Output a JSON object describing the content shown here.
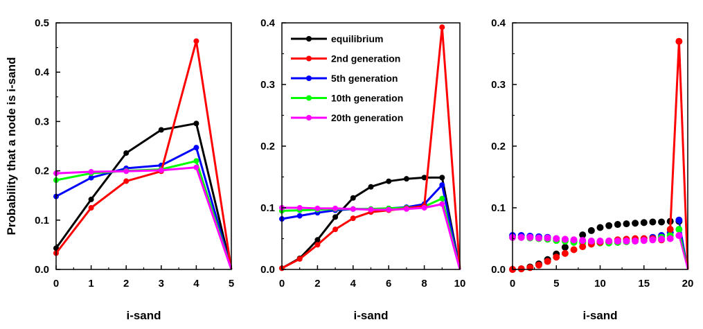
{
  "figure": {
    "ylabel": "Probability that a node is i-sand"
  },
  "colors": {
    "equilibrium": "#000000",
    "2nd": "#ff0000",
    "5th": "#0000ff",
    "10th": "#00ff00",
    "20th": "#ff00ff"
  },
  "chart_data": [
    {
      "type": "line",
      "xlabel": "i-sand",
      "xlim": [
        0,
        5
      ],
      "ylim": [
        0,
        0.5
      ],
      "xticks": [
        0,
        1,
        2,
        3,
        4,
        5
      ],
      "yticks": [
        0.0,
        0.1,
        0.2,
        0.3,
        0.4,
        0.5
      ],
      "series": [
        {
          "key": "equilibrium",
          "x": [
            0,
            1,
            2,
            3,
            4,
            5
          ],
          "y": [
            0.043,
            0.142,
            0.236,
            0.283,
            0.296,
            0.0
          ]
        },
        {
          "key": "5th",
          "x": [
            0,
            1,
            2,
            3,
            4,
            5
          ],
          "y": [
            0.148,
            0.186,
            0.205,
            0.211,
            0.247,
            0.0
          ]
        },
        {
          "key": "10th",
          "x": [
            0,
            1,
            2,
            3,
            4,
            5
          ],
          "y": [
            0.181,
            0.195,
            0.2,
            0.203,
            0.22,
            0.0
          ]
        },
        {
          "key": "2nd",
          "x": [
            0,
            1,
            2,
            3,
            4,
            5
          ],
          "y": [
            0.033,
            0.125,
            0.179,
            0.199,
            0.463,
            0.0
          ]
        },
        {
          "key": "20th",
          "x": [
            0,
            1,
            2,
            3,
            4,
            5
          ],
          "y": [
            0.195,
            0.198,
            0.199,
            0.201,
            0.207,
            0.0
          ]
        }
      ]
    },
    {
      "type": "line",
      "xlabel": "i-sand",
      "xlim": [
        0,
        10
      ],
      "ylim": [
        0,
        0.4
      ],
      "xticks": [
        0,
        2,
        4,
        6,
        8,
        10
      ],
      "yticks": [
        0.0,
        0.1,
        0.2,
        0.3,
        0.4
      ],
      "legend": {
        "position": "top-left",
        "entries": [
          {
            "key": "equilibrium",
            "label": "equilibrium"
          },
          {
            "key": "2nd",
            "label": "2nd generation"
          },
          {
            "key": "5th",
            "label": "5th generation"
          },
          {
            "key": "10th",
            "label": "10th generation"
          },
          {
            "key": "20th",
            "label": "20th generation"
          }
        ]
      },
      "series": [
        {
          "key": "equilibrium",
          "x": [
            0,
            1,
            2,
            3,
            4,
            5,
            6,
            7,
            8,
            9,
            10
          ],
          "y": [
            0.002,
            0.018,
            0.048,
            0.085,
            0.116,
            0.134,
            0.143,
            0.147,
            0.149,
            0.149,
            0.0
          ]
        },
        {
          "key": "5th",
          "x": [
            0,
            1,
            2,
            3,
            4,
            5,
            6,
            7,
            8,
            9,
            10
          ],
          "y": [
            0.082,
            0.087,
            0.092,
            0.096,
            0.098,
            0.098,
            0.099,
            0.101,
            0.106,
            0.137,
            0.0
          ]
        },
        {
          "key": "10th",
          "x": [
            0,
            1,
            2,
            3,
            4,
            5,
            6,
            7,
            8,
            9,
            10
          ],
          "y": [
            0.095,
            0.096,
            0.097,
            0.098,
            0.098,
            0.098,
            0.099,
            0.1,
            0.102,
            0.115,
            0.0
          ]
        },
        {
          "key": "2nd",
          "x": [
            0,
            1,
            2,
            3,
            4,
            5,
            6,
            7,
            8,
            9,
            10
          ],
          "y": [
            0.002,
            0.017,
            0.04,
            0.065,
            0.083,
            0.093,
            0.096,
            0.099,
            0.103,
            0.393,
            0.0
          ]
        },
        {
          "key": "20th",
          "x": [
            0,
            1,
            2,
            3,
            4,
            5,
            6,
            7,
            8,
            9,
            10
          ],
          "y": [
            0.1,
            0.1,
            0.099,
            0.099,
            0.098,
            0.097,
            0.097,
            0.098,
            0.1,
            0.106,
            0.0
          ]
        }
      ]
    },
    {
      "type": "scatter",
      "xlabel": "i-sand",
      "xlim": [
        0,
        20
      ],
      "ylim": [
        0,
        0.4
      ],
      "xticks": [
        0,
        5,
        10,
        15,
        20
      ],
      "yticks": [
        0.0,
        0.1,
        0.2,
        0.3,
        0.4
      ],
      "series": [
        {
          "key": "equilibrium",
          "x": [
            0,
            1,
            2,
            3,
            4,
            5,
            6,
            7,
            8,
            9,
            10,
            11,
            12,
            13,
            14,
            15,
            16,
            17,
            18,
            19,
            20
          ],
          "y": [
            0.0,
            0.001,
            0.004,
            0.009,
            0.016,
            0.025,
            0.036,
            0.046,
            0.056,
            0.063,
            0.068,
            0.071,
            0.073,
            0.074,
            0.075,
            0.076,
            0.077,
            0.077,
            0.078,
            0.078,
            0.0
          ]
        },
        {
          "key": "5th",
          "x": [
            0,
            1,
            2,
            3,
            4,
            5,
            6,
            7,
            8,
            9,
            10,
            11,
            12,
            13,
            14,
            15,
            16,
            17,
            18,
            19,
            20
          ],
          "y": [
            0.055,
            0.055,
            0.054,
            0.053,
            0.052,
            0.05,
            0.048,
            0.046,
            0.045,
            0.044,
            0.044,
            0.044,
            0.045,
            0.046,
            0.048,
            0.05,
            0.052,
            0.055,
            0.06,
            0.08,
            0.0
          ]
        },
        {
          "key": "10th",
          "x": [
            0,
            1,
            2,
            3,
            4,
            5,
            6,
            7,
            8,
            9,
            10,
            11,
            12,
            13,
            14,
            15,
            16,
            17,
            18,
            19,
            20
          ],
          "y": [
            0.052,
            0.052,
            0.051,
            0.05,
            0.049,
            0.047,
            0.046,
            0.044,
            0.043,
            0.043,
            0.043,
            0.043,
            0.044,
            0.045,
            0.046,
            0.047,
            0.049,
            0.052,
            0.055,
            0.065,
            0.0
          ]
        },
        {
          "key": "2nd",
          "x": [
            0,
            1,
            2,
            3,
            4,
            5,
            6,
            7,
            8,
            9,
            10,
            11,
            12,
            13,
            14,
            15,
            16,
            17,
            18,
            19,
            20
          ],
          "y": [
            0.0,
            0.001,
            0.003,
            0.007,
            0.013,
            0.02,
            0.026,
            0.032,
            0.037,
            0.041,
            0.044,
            0.046,
            0.048,
            0.049,
            0.05,
            0.05,
            0.05,
            0.048,
            0.065,
            0.37,
            0.0
          ]
        },
        {
          "key": "20th",
          "x": [
            0,
            1,
            2,
            3,
            4,
            5,
            6,
            7,
            8,
            9,
            10,
            11,
            12,
            13,
            14,
            15,
            16,
            17,
            18,
            19,
            20
          ],
          "y": [
            0.052,
            0.052,
            0.052,
            0.051,
            0.051,
            0.05,
            0.049,
            0.048,
            0.047,
            0.046,
            0.046,
            0.046,
            0.046,
            0.046,
            0.046,
            0.047,
            0.048,
            0.049,
            0.05,
            0.055,
            0.0
          ]
        }
      ]
    }
  ]
}
